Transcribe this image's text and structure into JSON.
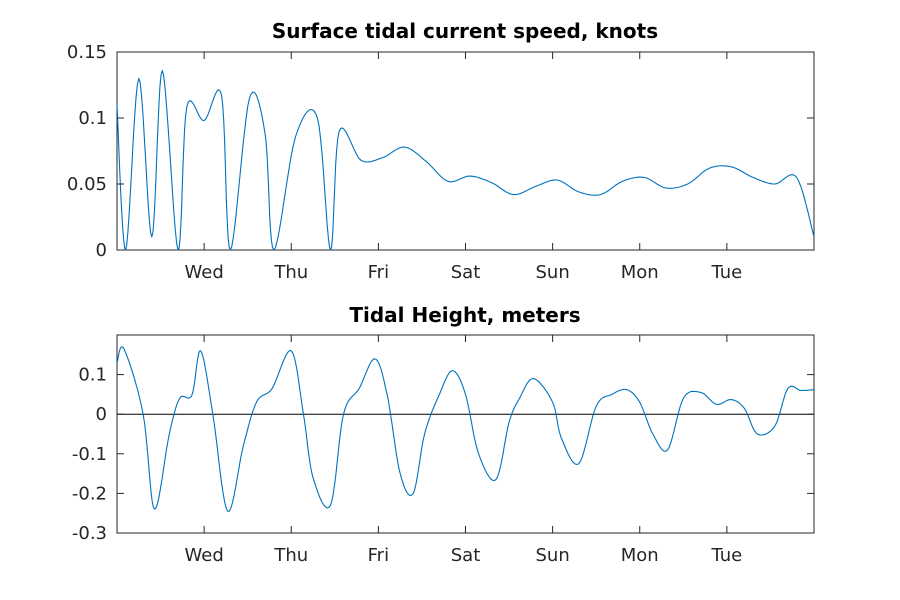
{
  "chart_data": [
    {
      "type": "line",
      "title": "Surface tidal current speed, knots",
      "xlabel": "",
      "ylabel": "",
      "x_unit": "days",
      "xlim": [
        0,
        8
      ],
      "ylim": [
        0,
        0.15
      ],
      "yticks": [
        0,
        0.05,
        0.1,
        0.15
      ],
      "ytick_labels": [
        "0",
        "0.05",
        "0.1",
        "0.15"
      ],
      "xticks": [
        1,
        2,
        3,
        4,
        5,
        6,
        7
      ],
      "xtick_labels": [
        "Wed",
        "Thu",
        "Fri",
        "Sat",
        "Sun",
        "Mon",
        "Tue"
      ],
      "grid": false,
      "color": "#0072BD",
      "series": [
        {
          "x": [
            0,
            0.1,
            0.25,
            0.4,
            0.52,
            0.7,
            0.8,
            1.0,
            1.2,
            1.3,
            1.52,
            1.7,
            1.8,
            2.05,
            2.3,
            2.45,
            2.55,
            2.8,
            3.05,
            3.3,
            3.55,
            3.8,
            4.05,
            4.3,
            4.55,
            4.8,
            5.05,
            5.3,
            5.55,
            5.8,
            6.05,
            6.3,
            6.55,
            6.8,
            7.05,
            7.3,
            7.55,
            7.8,
            8.0
          ],
          "y": [
            0.11,
            0.0,
            0.13,
            0.01,
            0.136,
            0.0,
            0.108,
            0.098,
            0.117,
            0.0,
            0.115,
            0.088,
            0.0,
            0.086,
            0.1,
            0.0,
            0.09,
            0.068,
            0.07,
            0.078,
            0.067,
            0.052,
            0.056,
            0.051,
            0.042,
            0.048,
            0.053,
            0.044,
            0.042,
            0.052,
            0.055,
            0.047,
            0.05,
            0.062,
            0.063,
            0.055,
            0.05,
            0.055,
            0.01
          ]
        }
      ]
    },
    {
      "type": "line",
      "title": "Tidal Height, meters",
      "xlabel": "",
      "ylabel": "",
      "x_unit": "days",
      "xlim": [
        0,
        8
      ],
      "ylim": [
        -0.3,
        0.2
      ],
      "yticks": [
        -0.3,
        -0.2,
        -0.1,
        0,
        0.1
      ],
      "ytick_labels": [
        "-0.3",
        "-0.2",
        "-0.1",
        "0",
        "0.1"
      ],
      "xticks": [
        1,
        2,
        3,
        4,
        5,
        6,
        7
      ],
      "xtick_labels": [
        "Wed",
        "Thu",
        "Fri",
        "Sat",
        "Sun",
        "Mon",
        "Tue"
      ],
      "grid": false,
      "zero_line": true,
      "color": "#0072BD",
      "series": [
        {
          "x": [
            0,
            0.08,
            0.3,
            0.43,
            0.6,
            0.72,
            0.86,
            0.96,
            1.1,
            1.27,
            1.45,
            1.6,
            1.78,
            2.0,
            2.14,
            2.25,
            2.45,
            2.6,
            2.78,
            2.96,
            3.1,
            3.25,
            3.4,
            3.53,
            3.7,
            3.85,
            4.0,
            4.15,
            4.35,
            4.5,
            4.62,
            4.78,
            5.0,
            5.1,
            5.3,
            5.5,
            5.68,
            5.85,
            6.0,
            6.15,
            6.32,
            6.5,
            6.7,
            6.88,
            7.05,
            7.2,
            7.35,
            7.55,
            7.7,
            7.85,
            8.0
          ],
          "y": [
            0.13,
            0.165,
            0.0,
            -0.24,
            -0.05,
            0.04,
            0.048,
            0.16,
            0.0,
            -0.245,
            -0.08,
            0.03,
            0.065,
            0.16,
            0.0,
            -0.16,
            -0.23,
            0.0,
            0.065,
            0.14,
            0.05,
            -0.15,
            -0.2,
            -0.05,
            0.05,
            0.11,
            0.05,
            -0.1,
            -0.165,
            -0.02,
            0.04,
            0.09,
            0.03,
            -0.06,
            -0.125,
            0.02,
            0.05,
            0.062,
            0.03,
            -0.05,
            -0.09,
            0.04,
            0.055,
            0.025,
            0.037,
            0.015,
            -0.05,
            -0.03,
            0.065,
            0.06,
            0.062
          ]
        }
      ]
    }
  ]
}
